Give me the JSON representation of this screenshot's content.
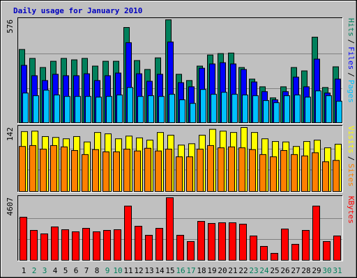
{
  "chart_data": [
    {
      "type": "bar",
      "title": "Daily usage for January 2010",
      "ylim": [
        0,
        576
      ],
      "yticks": [
        576
      ],
      "grid_divisions": 3,
      "legend_separator": "/",
      "series": [
        {
          "name": "Hits",
          "color": "#00805c",
          "values": [
            410,
            360,
            309,
            344,
            360,
            352,
            360,
            317,
            344,
            344,
            533,
            348,
            298,
            363,
            576,
            271,
            236,
            317,
            379,
            387,
            390,
            309,
            244,
            201,
            139,
            201,
            309,
            290,
            479,
            197,
            313
          ]
        },
        {
          "name": "Files",
          "color": "#0000ff",
          "values": [
            321,
            263,
            236,
            271,
            263,
            263,
            274,
            236,
            263,
            278,
            448,
            274,
            232,
            271,
            452,
            224,
            201,
            305,
            329,
            336,
            329,
            298,
            228,
            174,
            128,
            174,
            255,
            201,
            356,
            166,
            244
          ]
        },
        {
          "name": "Pages",
          "color": "#00c0ff",
          "values": [
            166,
            151,
            182,
            155,
            147,
            147,
            147,
            143,
            147,
            155,
            197,
            147,
            151,
            147,
            159,
            128,
            108,
            186,
            159,
            170,
            159,
            155,
            151,
            124,
            112,
            151,
            155,
            143,
            178,
            151,
            120
          ]
        }
      ]
    },
    {
      "type": "bar",
      "ylim": [
        0,
        142
      ],
      "yticks": [
        142
      ],
      "grid_divisions": 3,
      "legend_separator": "/",
      "series": [
        {
          "name": "Visits",
          "color": "#ffff00",
          "values": [
            133,
            134,
            122,
            120,
            117,
            122,
            110,
            131,
            128,
            117,
            123,
            119,
            114,
            131,
            125,
            103,
            106,
            125,
            138,
            134,
            131,
            142,
            131,
            117,
            111,
            110,
            100,
            111,
            114,
            97,
            105
          ]
        },
        {
          "name": "Sites",
          "color": "#ff8000",
          "values": [
            100,
            102,
            94,
            102,
            99,
            91,
            82,
            93,
            88,
            88,
            94,
            90,
            96,
            90,
            94,
            77,
            77,
            94,
            102,
            97,
            99,
            97,
            93,
            82,
            77,
            91,
            82,
            79,
            86,
            66,
            69
          ]
        }
      ]
    },
    {
      "type": "bar",
      "ylim": [
        0,
        4607
      ],
      "yticks": [
        4607
      ],
      "grid_divisions": 3,
      "categories": [
        "1",
        "2",
        "3",
        "4",
        "5",
        "6",
        "7",
        "8",
        "9",
        "10",
        "11",
        "12",
        "13",
        "14",
        "15",
        "16",
        "17",
        "18",
        "19",
        "20",
        "21",
        "22",
        "23",
        "24",
        "25",
        "26",
        "27",
        "28",
        "29",
        "30",
        "31"
      ],
      "category_colors": [
        "#000000",
        "#00805c",
        "#00805c",
        "#000000",
        "#000000",
        "#000000",
        "#000000",
        "#000000",
        "#00805c",
        "#00805c",
        "#000000",
        "#000000",
        "#000000",
        "#000000",
        "#000000",
        "#00805c",
        "#00805c",
        "#000000",
        "#000000",
        "#000000",
        "#000000",
        "#000000",
        "#00805c",
        "#00805c",
        "#000000",
        "#000000",
        "#000000",
        "#000000",
        "#000000",
        "#00805c",
        "#00805c"
      ],
      "series": [
        {
          "name": "KBytes",
          "color": "#ff0000",
          "values": [
            3174,
            2202,
            1946,
            2458,
            2253,
            2099,
            2355,
            2099,
            2202,
            2253,
            3994,
            2509,
            1843,
            2355,
            4607,
            1843,
            1382,
            2867,
            2714,
            2765,
            2765,
            2662,
            1792,
            1024,
            512,
            2304,
            1178,
            2202,
            3994,
            1382,
            1792
          ]
        }
      ]
    }
  ]
}
